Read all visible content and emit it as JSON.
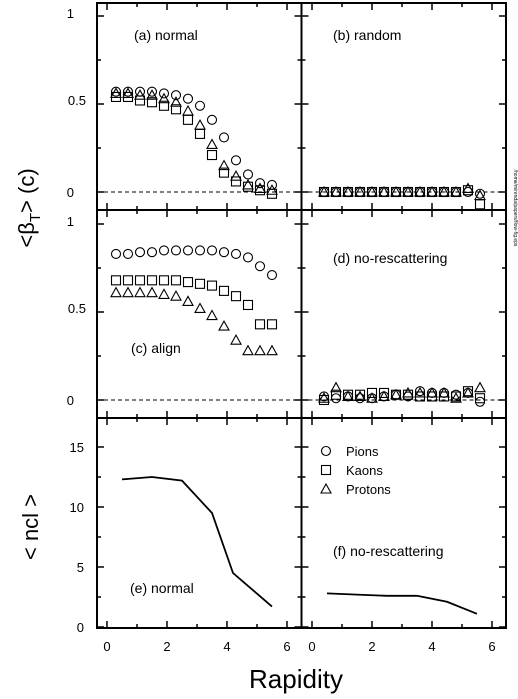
{
  "axes": {
    "x_label": "Rapidity",
    "y_label_top": "<β",
    "y_label_sub": "T",
    "y_label_end": "> (c)",
    "y_label_bottom": "< ncl >",
    "x_ticks": [
      "0",
      "2",
      "4",
      "6"
    ],
    "y_ticks_beta": [
      "0",
      "0.5",
      "1"
    ],
    "y_ticks_ncl": [
      "0",
      "5",
      "10",
      "15"
    ]
  },
  "legend": {
    "pions": "Pions",
    "kaons": "Kaons",
    "protons": "Protons"
  },
  "side_text": "/home/mirenda/papers/flow-fig.eps",
  "chart_data": [
    {
      "type": "scatter",
      "panel": "a",
      "label": "(a) normal",
      "xlim": [
        -0.3,
        6.5
      ],
      "ylim": [
        -0.1,
        1.05
      ],
      "series": [
        {
          "name": "Pions",
          "marker": "circle",
          "x": [
            0.3,
            0.7,
            1.1,
            1.5,
            1.9,
            2.3,
            2.7,
            3.1,
            3.5,
            3.9,
            4.3,
            4.7,
            5.1,
            5.5
          ],
          "y": [
            0.57,
            0.57,
            0.57,
            0.57,
            0.56,
            0.55,
            0.53,
            0.49,
            0.41,
            0.31,
            0.18,
            0.1,
            0.05,
            0.04
          ]
        },
        {
          "name": "Kaons",
          "marker": "square",
          "x": [
            0.3,
            0.7,
            1.1,
            1.5,
            1.9,
            2.3,
            2.7,
            3.1,
            3.5,
            3.9,
            4.3,
            4.7,
            5.1,
            5.5
          ],
          "y": [
            0.54,
            0.54,
            0.52,
            0.51,
            0.49,
            0.47,
            0.41,
            0.33,
            0.21,
            0.11,
            0.06,
            0.03,
            0.01,
            -0.01
          ]
        },
        {
          "name": "Protons",
          "marker": "triangle",
          "x": [
            0.3,
            0.7,
            1.1,
            1.5,
            1.9,
            2.3,
            2.7,
            3.1,
            3.5,
            3.9,
            4.3,
            4.7,
            5.1,
            5.5
          ],
          "y": [
            0.56,
            0.56,
            0.55,
            0.55,
            0.53,
            0.51,
            0.46,
            0.38,
            0.27,
            0.15,
            0.09,
            0.04,
            0.02,
            0.01
          ]
        }
      ]
    },
    {
      "type": "scatter",
      "panel": "b",
      "label": "(b) random",
      "xlim": [
        -0.3,
        6.5
      ],
      "ylim": [
        -0.1,
        1.05
      ],
      "series": [
        {
          "name": "Pions",
          "marker": "circle",
          "x": [
            0.4,
            0.8,
            1.2,
            1.6,
            2.0,
            2.4,
            2.8,
            3.2,
            3.6,
            4.0,
            4.4,
            4.8,
            5.2,
            5.6
          ],
          "y": [
            0,
            0,
            0,
            0,
            0,
            0,
            0,
            0,
            0,
            0,
            0,
            0,
            0,
            -0.01
          ]
        },
        {
          "name": "Kaons",
          "marker": "square",
          "x": [
            0.4,
            0.8,
            1.2,
            1.6,
            2.0,
            2.4,
            2.8,
            3.2,
            3.6,
            4.0,
            4.4,
            4.8,
            5.2,
            5.6
          ],
          "y": [
            0,
            0,
            0,
            0,
            0,
            0,
            0,
            0,
            0,
            0,
            0,
            0,
            0.01,
            -0.07
          ]
        },
        {
          "name": "Protons",
          "marker": "triangle",
          "x": [
            0.4,
            0.8,
            1.2,
            1.6,
            2.0,
            2.4,
            2.8,
            3.2,
            3.6,
            4.0,
            4.4,
            4.8,
            5.2,
            5.6
          ],
          "y": [
            0,
            0,
            0,
            0,
            0,
            0,
            0,
            0,
            0,
            0,
            0,
            0,
            0.02,
            -0.02
          ]
        }
      ]
    },
    {
      "type": "scatter",
      "panel": "c",
      "label": "(c) align",
      "xlim": [
        -0.3,
        6.5
      ],
      "ylim": [
        -0.1,
        1.05
      ],
      "series": [
        {
          "name": "Pions",
          "marker": "circle",
          "x": [
            0.3,
            0.7,
            1.1,
            1.5,
            1.9,
            2.3,
            2.7,
            3.1,
            3.5,
            3.9,
            4.3,
            4.7,
            5.1,
            5.5
          ],
          "y": [
            0.83,
            0.83,
            0.84,
            0.84,
            0.85,
            0.85,
            0.85,
            0.85,
            0.85,
            0.84,
            0.83,
            0.81,
            0.76,
            0.71
          ]
        },
        {
          "name": "Kaons",
          "marker": "square",
          "x": [
            0.3,
            0.7,
            1.1,
            1.5,
            1.9,
            2.3,
            2.7,
            3.1,
            3.5,
            3.9,
            4.3,
            4.7,
            5.1,
            5.5
          ],
          "y": [
            0.68,
            0.68,
            0.68,
            0.68,
            0.68,
            0.68,
            0.67,
            0.66,
            0.65,
            0.62,
            0.59,
            0.54,
            0.43,
            0.43
          ]
        },
        {
          "name": "Protons",
          "marker": "triangle",
          "x": [
            0.3,
            0.7,
            1.1,
            1.5,
            1.9,
            2.3,
            2.7,
            3.1,
            3.5,
            3.9,
            4.3,
            4.7,
            5.1,
            5.5
          ],
          "y": [
            0.61,
            0.61,
            0.61,
            0.61,
            0.6,
            0.59,
            0.56,
            0.52,
            0.48,
            0.42,
            0.34,
            0.28,
            0.28,
            0.28
          ]
        }
      ]
    },
    {
      "type": "scatter",
      "panel": "d",
      "label": "(d) no-rescattering",
      "xlim": [
        -0.3,
        6.5
      ],
      "ylim": [
        -0.1,
        1.05
      ],
      "series": [
        {
          "name": "Pions",
          "marker": "circle",
          "x": [
            0.4,
            0.8,
            1.2,
            1.6,
            2.0,
            2.4,
            2.8,
            3.2,
            3.6,
            4.0,
            4.4,
            4.8,
            5.2,
            5.6
          ],
          "y": [
            0.02,
            0.01,
            0.02,
            0.01,
            0.01,
            0.02,
            0.03,
            0.02,
            0.05,
            0.04,
            0.04,
            0.03,
            0.04,
            -0.01
          ]
        },
        {
          "name": "Kaons",
          "marker": "square",
          "x": [
            0.4,
            0.8,
            1.2,
            1.6,
            2.0,
            2.4,
            2.8,
            3.2,
            3.6,
            4.0,
            4.4,
            4.8,
            5.2,
            5.6
          ],
          "y": [
            0,
            0.03,
            0.03,
            0.03,
            0.04,
            0.04,
            0.03,
            0.03,
            0.02,
            0.02,
            0.02,
            0.02,
            0.05,
            0.01
          ]
        },
        {
          "name": "Protons",
          "marker": "triangle",
          "x": [
            0.4,
            0.8,
            1.2,
            1.6,
            2.0,
            2.4,
            2.8,
            3.2,
            3.6,
            4.0,
            4.4,
            4.8,
            5.2,
            5.6
          ],
          "y": [
            0.01,
            0.07,
            0.02,
            0.02,
            0.01,
            0.02,
            0.03,
            0.04,
            0.04,
            0.04,
            0.04,
            0.01,
            0.04,
            0.07
          ]
        }
      ]
    },
    {
      "type": "line",
      "panel": "e",
      "label": "(e) normal",
      "xlim": [
        -0.3,
        6.5
      ],
      "ylim": [
        0,
        17.5
      ],
      "x": [
        0.5,
        1.5,
        2.5,
        3.5,
        4.2,
        5.5
      ],
      "y": [
        12.3,
        12.5,
        12.2,
        9.5,
        4.5,
        1.7
      ]
    },
    {
      "type": "line",
      "panel": "f",
      "label": "(f) no-rescattering",
      "xlim": [
        -0.3,
        6.5
      ],
      "ylim": [
        0,
        17.5
      ],
      "x": [
        0.5,
        1.5,
        2.5,
        3.5,
        4.5,
        5.5
      ],
      "y": [
        2.8,
        2.7,
        2.6,
        2.6,
        2.1,
        1.1
      ]
    }
  ]
}
